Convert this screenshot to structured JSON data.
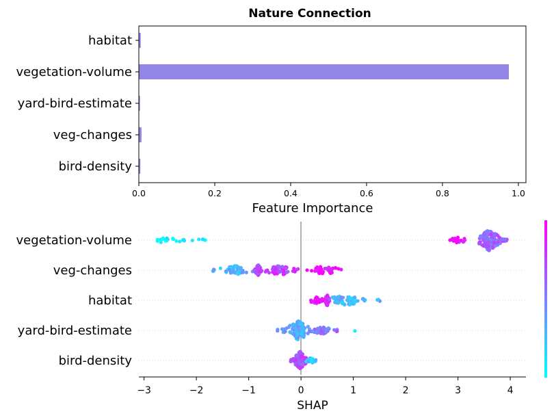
{
  "title": "Nature Connection",
  "colors": {
    "bar": "#9385e3",
    "point_low": "#00ffff",
    "point_high": "#ff00ff",
    "zero_line": "#999999",
    "row_grid": "#dddddd"
  },
  "chart_data": [
    {
      "type": "bar",
      "orientation": "horizontal",
      "title": "Nature Connection",
      "xlabel": "Feature Importance",
      "ylabel": "",
      "categories": [
        "habitat",
        "vegetation-volume",
        "yard-bird-estimate",
        "veg-changes",
        "bird-density"
      ],
      "values": [
        0.005,
        0.975,
        0.003,
        0.007,
        0.004
      ],
      "xlim": [
        0,
        1.02
      ],
      "xticks": [
        0,
        0.2,
        0.4,
        0.6,
        0.8,
        1.0
      ],
      "xtick_labels": [
        "0.0",
        "0.2",
        "0.4",
        "0.6",
        "0.8",
        "1.0"
      ],
      "grid": false
    },
    {
      "type": "scatter",
      "subtype": "beeswarm",
      "title": "",
      "xlabel": "SHAP",
      "ylabel": "",
      "categories": [
        "vegetation-volume",
        "veg-changes",
        "habitat",
        "yard-bird-estimate",
        "bird-density"
      ],
      "xlim": [
        -3.1,
        4.3
      ],
      "xticks": [
        -3,
        -2,
        -1,
        0,
        1,
        2,
        3,
        4
      ],
      "xtick_labels": [
        "−3",
        "−2",
        "−1",
        "0",
        "1",
        "2",
        "3",
        "4"
      ],
      "colorbar": "right, cool colormap",
      "series": [
        {
          "feature": "vegetation-volume",
          "clusters": [
            {
              "x_min": -2.8,
              "x_max": -1.75,
              "center": -2.6,
              "count": 24,
              "color_value": 0.05
            },
            {
              "x_min": 2.8,
              "x_max": 3.15,
              "center": 3.0,
              "count": 22,
              "color_value": 0.95
            },
            {
              "x_min": 3.4,
              "x_max": 3.95,
              "center": 3.6,
              "count": 160,
              "color_value": 0.6
            }
          ]
        },
        {
          "feature": "veg-changes",
          "clusters": [
            {
              "x_min": -1.7,
              "x_max": -0.9,
              "center": -1.25,
              "count": 45,
              "color_value": 0.3
            },
            {
              "x_min": -0.9,
              "x_max": -0.75,
              "center": -0.82,
              "count": 60,
              "color_value": 0.7
            },
            {
              "x_min": -0.75,
              "x_max": 0.0,
              "center": -0.4,
              "count": 50,
              "color_value": 0.75
            },
            {
              "x_min": 0.0,
              "x_max": 0.85,
              "center": 0.45,
              "count": 40,
              "color_value": 0.95
            }
          ]
        },
        {
          "feature": "habitat",
          "clusters": [
            {
              "x_min": 0.15,
              "x_max": 0.45,
              "center": 0.3,
              "count": 30,
              "color_value": 0.85
            },
            {
              "x_min": 0.45,
              "x_max": 0.55,
              "center": 0.5,
              "count": 60,
              "color_value": 0.8
            },
            {
              "x_min": 0.55,
              "x_max": 1.55,
              "center": 0.85,
              "count": 55,
              "color_value": 0.3
            }
          ]
        },
        {
          "feature": "yard-bird-estimate",
          "clusters": [
            {
              "x_min": -0.45,
              "x_max": 0.2,
              "center": -0.05,
              "count": 110,
              "color_value": 0.35
            },
            {
              "x_min": 0.2,
              "x_max": 0.7,
              "center": 0.4,
              "count": 40,
              "color_value": 0.55
            },
            {
              "x_min": 1.0,
              "x_max": 1.05,
              "center": 1.03,
              "count": 1,
              "color_value": 0.1
            }
          ]
        },
        {
          "feature": "bird-density",
          "clusters": [
            {
              "x_min": -0.2,
              "x_max": 0.1,
              "center": -0.02,
              "count": 110,
              "color_value": 0.7
            },
            {
              "x_min": 0.1,
              "x_max": 0.3,
              "center": 0.2,
              "count": 25,
              "color_value": 0.2
            }
          ]
        }
      ]
    }
  ]
}
